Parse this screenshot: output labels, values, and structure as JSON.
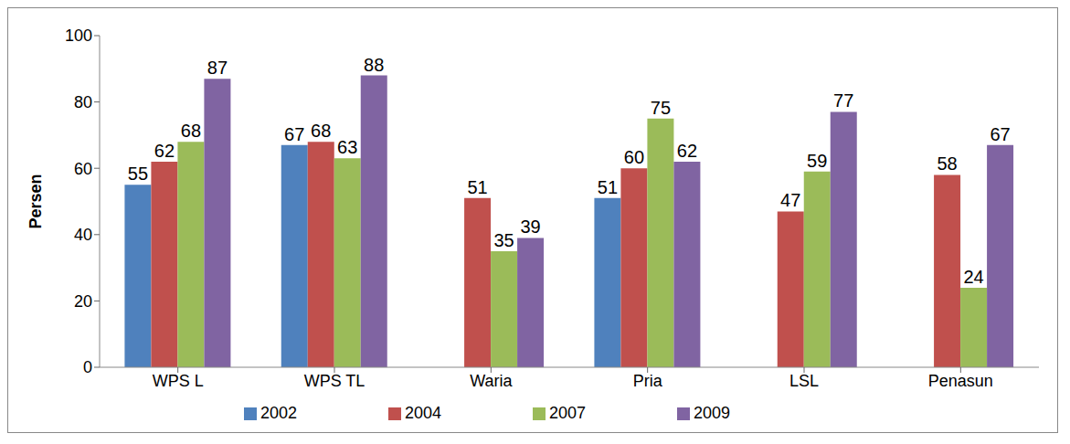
{
  "chart_data": {
    "type": "bar",
    "y_label": "Persen",
    "categories": [
      "WPS L",
      "WPS TL",
      "Waria",
      "Pria",
      "LSL",
      "Penasun"
    ],
    "series": [
      {
        "name": "2002",
        "color": "#4f81bd",
        "values": [
          55,
          67,
          null,
          51,
          null,
          null
        ]
      },
      {
        "name": "2004",
        "color": "#c0504d",
        "values": [
          62,
          68,
          51,
          60,
          47,
          58
        ]
      },
      {
        "name": "2007",
        "color": "#9bbb59",
        "values": [
          68,
          63,
          35,
          75,
          59,
          24
        ]
      },
      {
        "name": "2009",
        "color": "#8064a2",
        "values": [
          87,
          88,
          39,
          62,
          77,
          67
        ]
      }
    ],
    "ylim": [
      0,
      100
    ],
    "yticks": [
      0,
      20,
      40,
      60,
      80,
      100
    ],
    "grid": false,
    "legend": "bottom",
    "data_labels": true
  }
}
